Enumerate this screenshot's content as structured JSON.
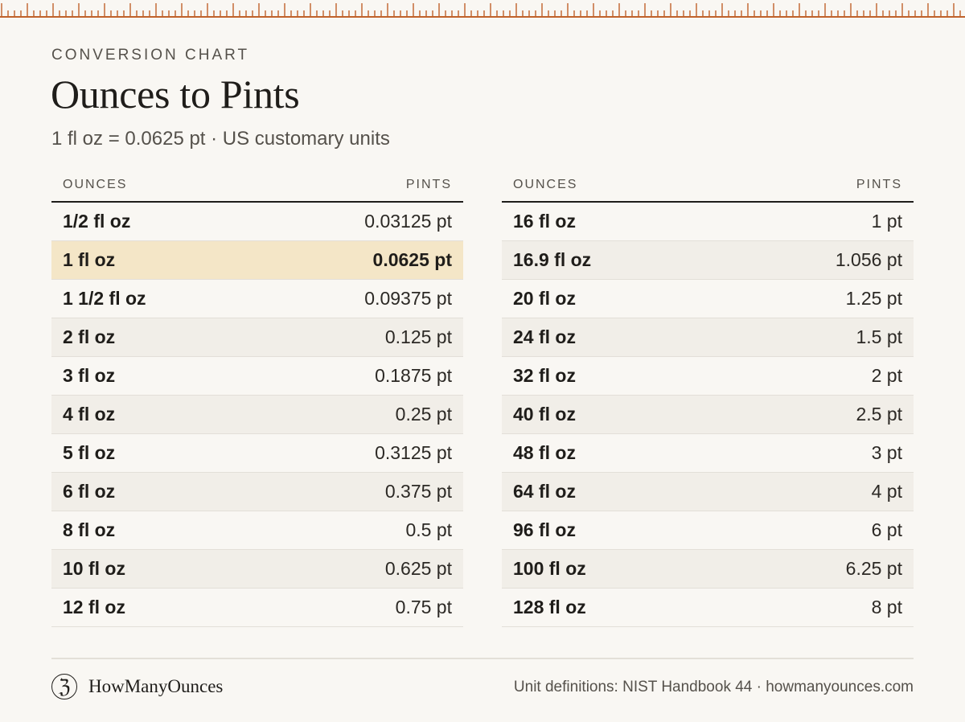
{
  "header": {
    "eyebrow": "CONVERSION CHART",
    "title": "Ounces to Pints",
    "subtitle": "1 fl oz = 0.0625 pt · US customary units"
  },
  "columns": {
    "ounces": "OUNCES",
    "pints": "PINTS"
  },
  "left_table": [
    {
      "oz": "1/2 fl oz",
      "pt": "0.03125 pt"
    },
    {
      "oz": "1 fl oz",
      "pt": "0.0625 pt",
      "highlight": true
    },
    {
      "oz": "1 1/2 fl oz",
      "pt": "0.09375 pt"
    },
    {
      "oz": "2 fl oz",
      "pt": "0.125 pt"
    },
    {
      "oz": "3 fl oz",
      "pt": "0.1875 pt"
    },
    {
      "oz": "4 fl oz",
      "pt": "0.25 pt"
    },
    {
      "oz": "5 fl oz",
      "pt": "0.3125 pt"
    },
    {
      "oz": "6 fl oz",
      "pt": "0.375 pt"
    },
    {
      "oz": "8 fl oz",
      "pt": "0.5 pt"
    },
    {
      "oz": "10 fl oz",
      "pt": "0.625 pt"
    },
    {
      "oz": "12 fl oz",
      "pt": "0.75 pt"
    }
  ],
  "right_table": [
    {
      "oz": "16 fl oz",
      "pt": "1 pt"
    },
    {
      "oz": "16.9 fl oz",
      "pt": "1.056 pt"
    },
    {
      "oz": "20 fl oz",
      "pt": "1.25 pt"
    },
    {
      "oz": "24 fl oz",
      "pt": "1.5 pt"
    },
    {
      "oz": "32 fl oz",
      "pt": "2 pt"
    },
    {
      "oz": "40 fl oz",
      "pt": "2.5 pt"
    },
    {
      "oz": "48 fl oz",
      "pt": "3 pt"
    },
    {
      "oz": "64 fl oz",
      "pt": "4 pt"
    },
    {
      "oz": "96 fl oz",
      "pt": "6 pt"
    },
    {
      "oz": "100 fl oz",
      "pt": "6.25 pt"
    },
    {
      "oz": "128 fl oz",
      "pt": "8 pt"
    }
  ],
  "footer": {
    "logo_glyph": "ℨ",
    "brand": "HowManyOunces",
    "source": "Unit definitions: NIST Handbook 44 · howmanyounces.com"
  },
  "colors": {
    "background": "#f9f7f3",
    "ruler": "#c0622b",
    "highlight_row": "#f4e6c7",
    "alt_row": "#f1eee8"
  }
}
